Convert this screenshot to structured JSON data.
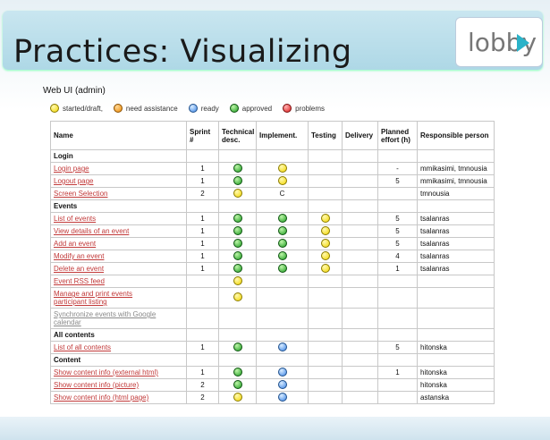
{
  "slide": {
    "title": "Practices: Visualizing",
    "logo": "lobby",
    "subtitle": "Web UI (admin)"
  },
  "legend": [
    {
      "color": "yellow",
      "label": "started/draft,"
    },
    {
      "color": "orange",
      "label": "need assistance"
    },
    {
      "color": "blue",
      "label": "ready"
    },
    {
      "color": "green",
      "label": "approved"
    },
    {
      "color": "red",
      "label": "problems"
    }
  ],
  "table": {
    "headers": [
      "Name",
      "Sprint #",
      "Technical desc.",
      "Implement.",
      "Testing",
      "Delivery",
      "Planned effort (h)",
      "Responsible person"
    ],
    "rows": [
      {
        "type": "section",
        "name": "Login"
      },
      {
        "name": "Login page",
        "sprint": "1",
        "tech": "green",
        "impl": "yellow",
        "test": "",
        "deliv": "",
        "effort": "-",
        "person": "mmikasimi, tmnousia"
      },
      {
        "name": "Logout page",
        "sprint": "1",
        "tech": "green",
        "impl": "yellow",
        "test": "",
        "deliv": "",
        "effort": "5",
        "person": "mmikasimi, tmnousia"
      },
      {
        "name": "Screen Selection",
        "sprint": "2",
        "tech": "yellow",
        "impl": "C",
        "test": "",
        "deliv": "",
        "effort": "",
        "person": "tmnousia"
      },
      {
        "type": "section",
        "name": "Events"
      },
      {
        "name": "List of events",
        "sprint": "1",
        "tech": "green",
        "impl": "green",
        "test": "yellow",
        "deliv": "",
        "effort": "5",
        "person": "tsalanras"
      },
      {
        "name": "View details of an event",
        "sprint": "1",
        "tech": "green",
        "impl": "green",
        "test": "yellow",
        "deliv": "",
        "effort": "5",
        "person": "tsalanras"
      },
      {
        "name": "Add an event",
        "sprint": "1",
        "tech": "green",
        "impl": "green",
        "test": "yellow",
        "deliv": "",
        "effort": "5",
        "person": "tsalanras"
      },
      {
        "name": "Modify an event",
        "sprint": "1",
        "tech": "green",
        "impl": "green",
        "test": "yellow",
        "deliv": "",
        "effort": "4",
        "person": "tsalanras"
      },
      {
        "name": "Delete an event",
        "sprint": "1",
        "tech": "green",
        "impl": "green",
        "test": "yellow",
        "deliv": "",
        "effort": "1",
        "person": "tsalanras"
      },
      {
        "name": "Event RSS feed",
        "sprint": "",
        "tech": "yellow",
        "impl": "",
        "test": "",
        "deliv": "",
        "effort": "",
        "person": ""
      },
      {
        "name": "Manage and print events",
        "name2": "participant listing",
        "sprint": "",
        "tech": "yellow",
        "impl": "",
        "test": "",
        "deliv": "",
        "effort": "",
        "person": ""
      },
      {
        "name": "Synchronize events with Google",
        "name2": "calendar",
        "dim": true,
        "sprint": "",
        "tech": "",
        "impl": "",
        "test": "",
        "deliv": "",
        "effort": "",
        "person": ""
      },
      {
        "type": "section",
        "name": "All contents"
      },
      {
        "name": "List of all contents",
        "sprint": "1",
        "tech": "green",
        "impl": "blue",
        "test": "",
        "deliv": "",
        "effort": "5",
        "person": "hitonska"
      },
      {
        "type": "section",
        "name": "Content"
      },
      {
        "name": "Show content info (external html)",
        "sprint": "1",
        "tech": "green",
        "impl": "blue",
        "test": "",
        "deliv": "",
        "effort": "1",
        "person": "hitonska"
      },
      {
        "name": "Show content info (picture)",
        "sprint": "2",
        "tech": "green",
        "impl": "blue",
        "test": "",
        "deliv": "",
        "effort": "",
        "person": "hitonska"
      },
      {
        "name": "Show content info (html page)",
        "sprint": "2",
        "tech": "yellow",
        "impl": "blue",
        "test": "",
        "deliv": "",
        "effort": "",
        "person": "astanska"
      }
    ]
  }
}
